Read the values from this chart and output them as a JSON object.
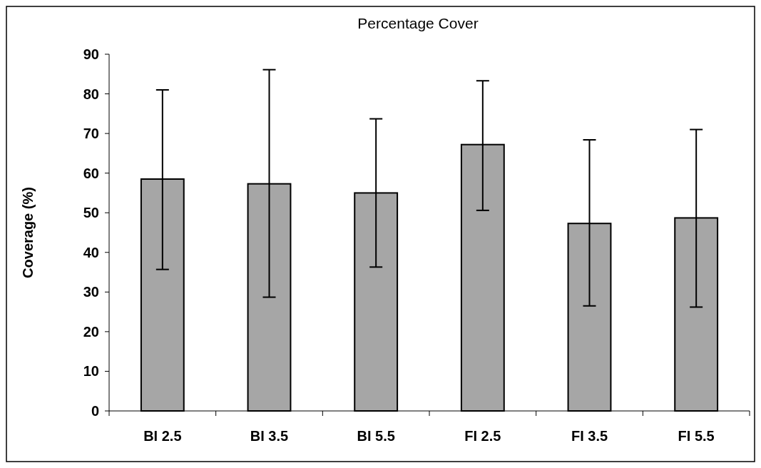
{
  "chart_data": {
    "type": "bar",
    "title": "Percentage Cover",
    "ylabel": "Coverage (%)",
    "categories": [
      "BI 2.5",
      "BI 3.5",
      "BI 5.5",
      "FI 2.5",
      "FI 3.5",
      "FI 5.5"
    ],
    "values": [
      58.5,
      57.3,
      55,
      67.2,
      47.3,
      48.7
    ],
    "errors": [
      [
        35.7,
        81
      ],
      [
        28.7,
        86.1
      ],
      [
        36.3,
        73.7
      ],
      [
        50.6,
        83.3
      ],
      [
        26.5,
        68.4
      ],
      [
        26.2,
        71
      ]
    ],
    "color": "#a6a6a6",
    "ylim": [
      0,
      90
    ],
    "yticks": [
      0,
      10,
      20,
      30,
      40,
      50,
      60,
      70,
      80,
      90
    ],
    "grid": false
  }
}
